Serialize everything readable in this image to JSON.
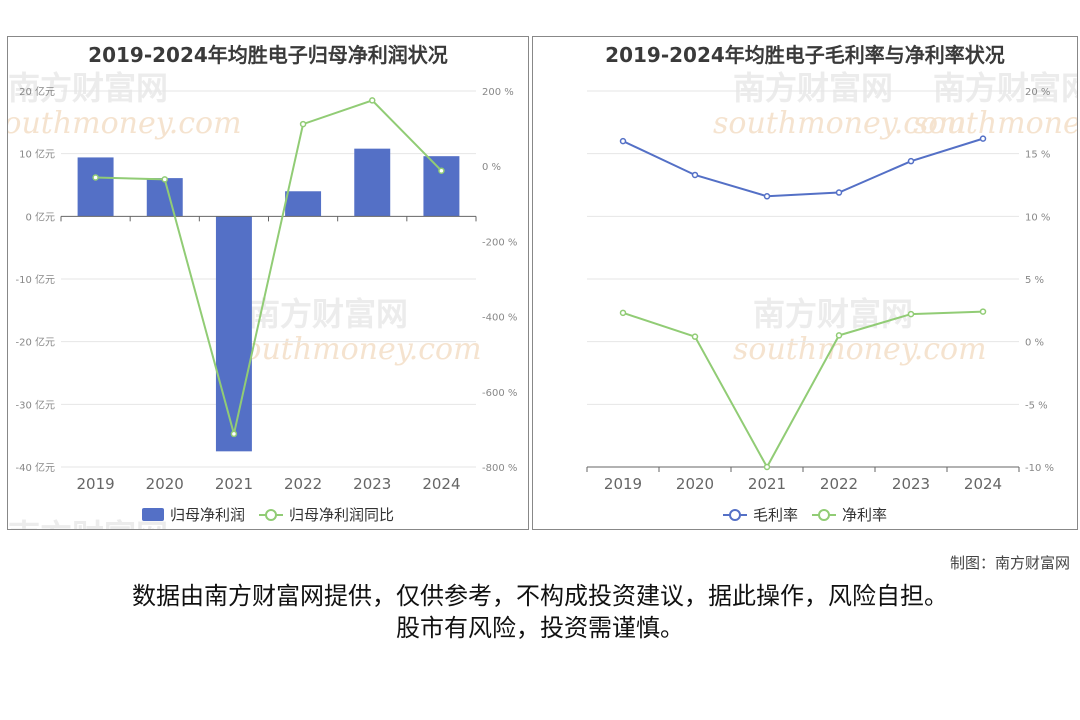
{
  "footer": {
    "credit": "制图：南方财富网",
    "disclaimer_line1": "数据由南方财富网提供，仅供参考，不构成投资建议，据此操作，风险自担。",
    "disclaimer_line2": "股市有风险，投资需谨慎。"
  },
  "watermark": {
    "cn": "南方财富网",
    "en": "southmoney.com"
  },
  "colors": {
    "bar": "#5470c6",
    "line_blue": "#5470c6",
    "line_green": "#91cc75",
    "grid": "#e6e6e6",
    "axis_text": "#888888"
  },
  "chart_data": [
    {
      "type": "bar",
      "title": "2019-2024年均胜电子归母净利润状况",
      "categories": [
        "2019",
        "2020",
        "2021",
        "2022",
        "2023",
        "2024"
      ],
      "y_left": {
        "ticks": [
          20,
          10,
          0,
          -10,
          -20,
          -30,
          -40
        ],
        "unit": "亿元",
        "ylim": [
          -40,
          20
        ]
      },
      "y_right": {
        "ticks": [
          200,
          0,
          -200,
          -400,
          -600,
          -800
        ],
        "unit": "%",
        "ylim": [
          -800,
          200
        ]
      },
      "grid": true,
      "legend_position": "bottom-center",
      "series": [
        {
          "name": "归母净利润",
          "kind": "bar",
          "axis": "left",
          "values": [
            9.4,
            6.1,
            -37.5,
            4.0,
            10.8,
            9.6
          ]
        },
        {
          "name": "归母净利润同比",
          "kind": "line",
          "axis": "right",
          "values": [
            -30,
            -35,
            -712,
            112,
            175,
            -12
          ]
        }
      ]
    },
    {
      "type": "line",
      "title": "2019-2024年均胜电子毛利率与净利率状况",
      "categories": [
        "2019",
        "2020",
        "2021",
        "2022",
        "2023",
        "2024"
      ],
      "y_right": {
        "ticks": [
          20,
          15,
          10,
          5,
          0,
          -5,
          -10
        ],
        "unit": "%",
        "ylim": [
          -10,
          20
        ]
      },
      "grid": true,
      "legend_position": "bottom-center",
      "series": [
        {
          "name": "毛利率",
          "color": "#5470c6",
          "values": [
            16.0,
            13.3,
            11.6,
            11.9,
            14.4,
            16.2
          ]
        },
        {
          "name": "净利率",
          "color": "#91cc75",
          "values": [
            2.3,
            0.4,
            -10.0,
            0.5,
            2.2,
            2.4
          ]
        }
      ]
    }
  ]
}
